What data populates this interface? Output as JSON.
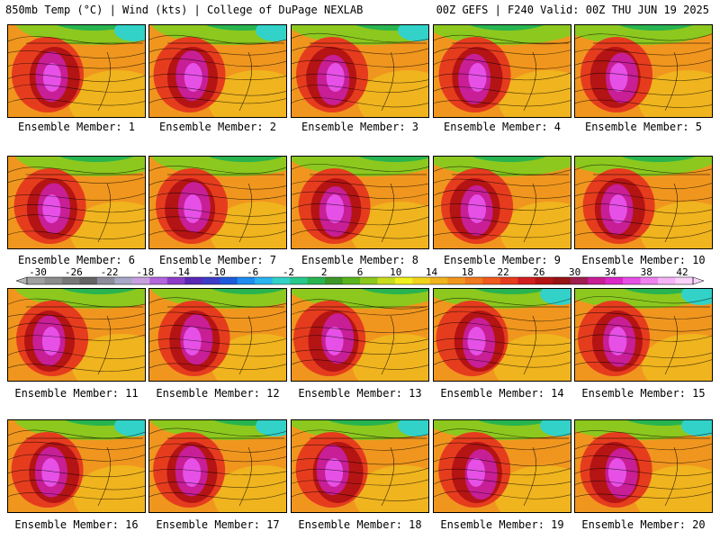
{
  "header": {
    "left": "850mb Temp (°C) | Wind (kts) | College of DuPage NEXLAB",
    "right": "00Z GEFS | F240 Valid: 00Z THU JUN 19 2025"
  },
  "members": [
    "Ensemble Member: 1",
    "Ensemble Member: 2",
    "Ensemble Member: 3",
    "Ensemble Member: 4",
    "Ensemble Member: 5",
    "Ensemble Member: 6",
    "Ensemble Member: 7",
    "Ensemble Member: 8",
    "Ensemble Member: 9",
    "Ensemble Member: 10",
    "Ensemble Member: 11",
    "Ensemble Member: 12",
    "Ensemble Member: 13",
    "Ensemble Member: 14",
    "Ensemble Member: 15",
    "Ensemble Member: 16",
    "Ensemble Member: 17",
    "Ensemble Member: 18",
    "Ensemble Member: 19",
    "Ensemble Member: 20"
  ],
  "colorbar": {
    "labels": [
      "-30",
      "-26",
      "-22",
      "-18",
      "-14",
      "-10",
      "-6",
      "-2",
      "2",
      "6",
      "10",
      "14",
      "18",
      "22",
      "26",
      "30",
      "34",
      "38",
      "42"
    ],
    "colors": [
      "#a0a0a0",
      "#8c8c8c",
      "#787878",
      "#646464",
      "#8c8c9c",
      "#a8a8c8",
      "#c8a0e0",
      "#b464dc",
      "#8c3cc8",
      "#5a28b4",
      "#3c3cc8",
      "#1e5adc",
      "#1e8cf0",
      "#28b4f0",
      "#32d2c8",
      "#28c88c",
      "#28b450",
      "#3c9628",
      "#5ab41e",
      "#8cc81e",
      "#c8dc1e",
      "#f0f01e",
      "#f0d21e",
      "#f0b41e",
      "#f0961e",
      "#f0781e",
      "#f05a1e",
      "#e63c1e",
      "#d21e1e",
      "#b41414",
      "#961414",
      "#a01e50",
      "#c81e96",
      "#dc28c8",
      "#e650e6",
      "#f082f0",
      "#f5b4f5",
      "#fad2fa"
    ]
  }
}
